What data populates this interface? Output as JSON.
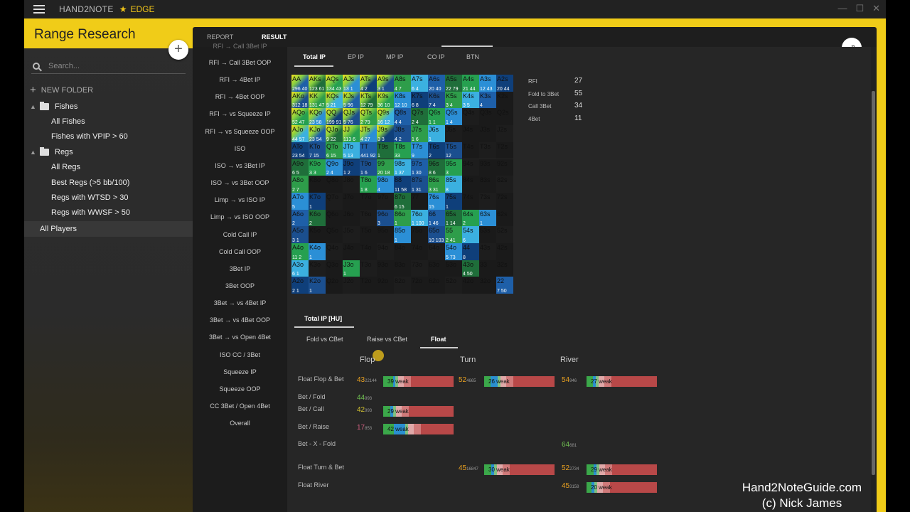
{
  "title_bar": {
    "app": "HAND2NOTE",
    "edition": "EDGE"
  },
  "sidebar": {
    "title": "Range Research",
    "search_placeholder": "Search...",
    "new_folder": "NEW FOLDER",
    "tree": [
      {
        "type": "folder",
        "label": "Fishes"
      },
      {
        "type": "leaf",
        "label": "All Fishes"
      },
      {
        "type": "leaf",
        "label": "Fishes with VPIP > 60"
      },
      {
        "type": "folder",
        "label": "Regs"
      },
      {
        "type": "leaf",
        "label": "All Regs"
      },
      {
        "type": "leaf",
        "label": "Best Regs (>5 bb/100)"
      },
      {
        "type": "leaf",
        "label": "Regs with WTSD > 30"
      },
      {
        "type": "leaf",
        "label": "Regs with WWSF > 50"
      },
      {
        "type": "selected",
        "label": "All Players"
      }
    ]
  },
  "tabs": [
    "REPORT",
    "RESULT"
  ],
  "left_menu": [
    "RFI → Call 3Bet IP",
    "RFI → Call 3Bet OOP",
    "RFI → 4Bet IP",
    "RFI → 4Bet OOP",
    "RFI → vs Squeeze IP",
    "RFI → vs Squeeze OOP",
    "ISO",
    "ISO → vs 3Bet IP",
    "ISO → vs 3Bet OOP",
    "Limp → vs ISO IP",
    "Limp → vs ISO OOP",
    "Cold Call IP",
    "Cold Call OOP",
    "3Bet IP",
    "3Bet OOP",
    "3Bet → vs 4Bet IP",
    "3Bet → vs 4Bet OOP",
    "3Bet → vs Open 4Bet",
    "ISO CC / 3Bet",
    "Squeeze IP",
    "Squeeze OOP",
    "CC 3Bet / Open 4Bet",
    "Overall"
  ],
  "pos_tabs": [
    "Total IP",
    "EP IP",
    "MP IP",
    "CO IP",
    "BTN"
  ],
  "range_stats": [
    {
      "label": "RFI",
      "value": "27"
    },
    {
      "label": "Fold to 3Bet",
      "value": "55"
    },
    {
      "label": "Call 3Bet",
      "value": "34"
    },
    {
      "label": "4Bet",
      "value": "11"
    }
  ],
  "ranks": [
    "A",
    "K",
    "Q",
    "J",
    "T",
    "9",
    "8",
    "7",
    "6",
    "5",
    "4",
    "3",
    "2"
  ],
  "grid_cells": [
    [
      "296 40",
      "123 61",
      "134 43",
      "13 1",
      "4 2",
      "3 1",
      "4 7",
      "6 4",
      "20 40",
      "22 79",
      "21 44",
      "12 43",
      "20 44"
    ],
    [
      "312 18",
      "131 47",
      "5 21",
      "5 96",
      "12 79",
      "36 10",
      "12 10",
      "6 8",
      "7 4",
      "3 4",
      "3 5",
      "4",
      ""
    ],
    [
      "52 47",
      "23 58",
      "199 91",
      "5 76",
      "2 79",
      "16 12",
      "4 4",
      "2 4",
      "1 1",
      "1 4",
      "",
      "",
      ""
    ],
    [
      "44 57",
      "23 54",
      "9 22",
      "113 6",
      "4 27",
      "3 3",
      "4 2",
      "1 6",
      "1",
      "",
      "",
      "",
      ""
    ],
    [
      "23 54",
      "7 15",
      "6 15",
      "5 13",
      "441 92",
      "1",
      "33",
      "9",
      "2",
      "12",
      "",
      "",
      ""
    ],
    [
      "6 5",
      "3 3",
      "2 4",
      "1 2",
      "1 6",
      "20 18",
      "1 37",
      "1 30",
      "8 6",
      "3",
      "",
      "",
      ""
    ],
    [
      "2 7",
      "",
      "",
      "",
      "1 8",
      "4",
      "11 58",
      "1 31",
      "3 31",
      "8",
      "",
      "",
      ""
    ],
    [
      "5",
      "1",
      "",
      "",
      "",
      "",
      "6 15",
      "",
      "15",
      "1",
      "",
      "",
      ""
    ],
    [
      "2",
      "2",
      "",
      "",
      "",
      "3",
      "1",
      "1 100",
      "1 46",
      "1 14",
      "2",
      "1",
      ""
    ],
    [
      "3 1",
      "",
      "",
      "",
      "",
      "",
      "1",
      "",
      "10 103",
      "2 41",
      "6",
      "",
      ""
    ],
    [
      "11 2",
      "1",
      "",
      "",
      "",
      "",
      "",
      "",
      "",
      "5 73",
      "8",
      "",
      ""
    ],
    [
      "6 1",
      "",
      "",
      "1",
      "",
      "",
      "",
      "",
      "",
      "",
      "4 50",
      "",
      ""
    ],
    [
      "2 1",
      "1",
      "",
      "",
      "",
      "",
      "",
      "",
      "",
      "",
      "",
      "",
      "7 50"
    ]
  ],
  "result_section": {
    "header": "Total IP [HU]",
    "sub_tabs": [
      "Fold vs CBet",
      "Raise vs CBet",
      "Float"
    ],
    "columns": [
      "Flop",
      "Turn",
      "River"
    ],
    "rows": [
      {
        "label": "Float Flop & Bet",
        "flop": {
          "v": "43",
          "n": "22144",
          "bar": "39 weak"
        },
        "turn": {
          "v": "52",
          "n": "4665",
          "bar": "26 weak"
        },
        "river": {
          "v": "54",
          "n": "946",
          "bar": "27 weak"
        }
      },
      {
        "label": "Bet / Fold",
        "flop": {
          "v": "44",
          "n": "993"
        }
      },
      {
        "label": "Bet / Call",
        "flop": {
          "v": "42",
          "n": "993",
          "bar": "29 weak"
        }
      },
      {
        "label": "Bet / Raise",
        "flop": {
          "v": "17",
          "n": "853",
          "bar": "42 weak"
        }
      },
      {
        "label": "Bet - X - Fold",
        "river": {
          "v": "64",
          "n": "681"
        }
      },
      {
        "label": "Float Turn & Bet",
        "turn": {
          "v": "45",
          "n": "16847",
          "bar": "30 weak"
        },
        "river": {
          "v": "52",
          "n": "2734",
          "bar": "29 weak"
        }
      },
      {
        "label": "Float River",
        "river": {
          "v": "45",
          "n": "3158",
          "bar": "20 weak"
        }
      }
    ]
  },
  "watermark": [
    "Hand2NoteGuide.com",
    "(c) Nick James"
  ]
}
